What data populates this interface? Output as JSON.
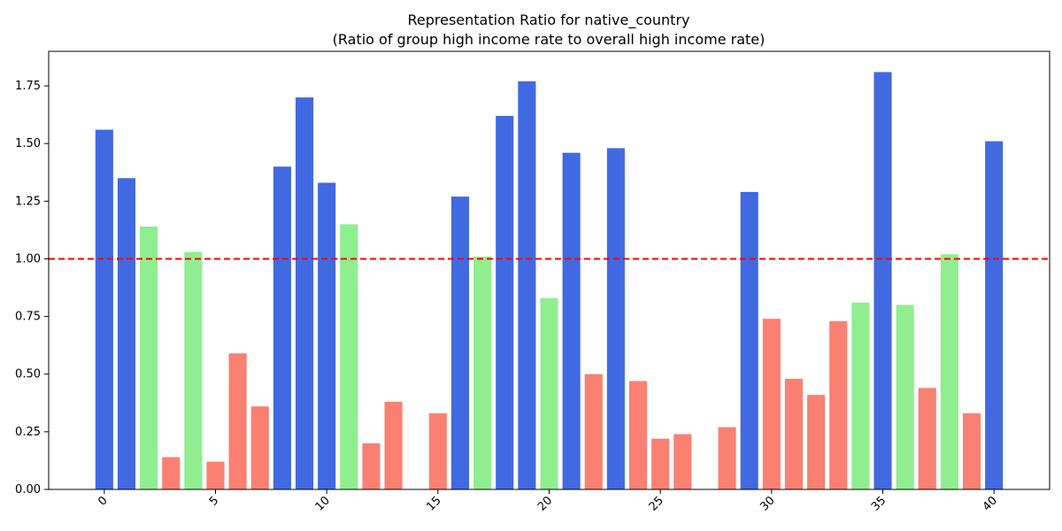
{
  "chart_data": {
    "type": "bar",
    "title": "Representation Ratio for native_country",
    "subtitle": "(Ratio of group high income rate to overall high income rate)",
    "xlabel": "",
    "ylabel": "",
    "x": [
      0,
      1,
      2,
      3,
      4,
      5,
      6,
      7,
      8,
      9,
      10,
      11,
      12,
      13,
      14,
      15,
      16,
      17,
      18,
      19,
      20,
      21,
      22,
      23,
      24,
      25,
      26,
      27,
      28,
      29,
      30,
      31,
      32,
      33,
      34,
      35,
      36,
      37,
      38,
      39,
      40
    ],
    "values": [
      1.56,
      1.35,
      1.14,
      0.14,
      1.03,
      0.12,
      0.59,
      0.36,
      1.4,
      1.7,
      1.33,
      1.15,
      0.2,
      0.38,
      0.0,
      0.33,
      1.27,
      1.01,
      1.62,
      1.77,
      0.83,
      1.46,
      0.5,
      1.48,
      0.47,
      0.22,
      0.24,
      0.0,
      0.27,
      1.29,
      0.74,
      0.48,
      0.41,
      0.73,
      0.81,
      1.81,
      0.8,
      0.44,
      1.02,
      0.33,
      1.51
    ],
    "xticks": [
      "0",
      "5",
      "10",
      "15",
      "20",
      "25",
      "30",
      "35",
      "40"
    ],
    "yticks": [
      "0.00",
      "0.25",
      "0.50",
      "0.75",
      "1.00",
      "1.25",
      "1.50",
      "1.75"
    ],
    "ylim": [
      0,
      1.9
    ],
    "xlim": [
      -2.5,
      42.5
    ],
    "reference_line": {
      "value": 1.0,
      "color": "#ff0000",
      "style": "dashed"
    },
    "colors": {
      "high": "#4169e1",
      "near": "#90ee90",
      "low": "#fa8072"
    },
    "color_rule": "blue if > 1.2, green if 0.8–1.2, salmon if < 0.8",
    "grid": false,
    "legend": "none"
  }
}
